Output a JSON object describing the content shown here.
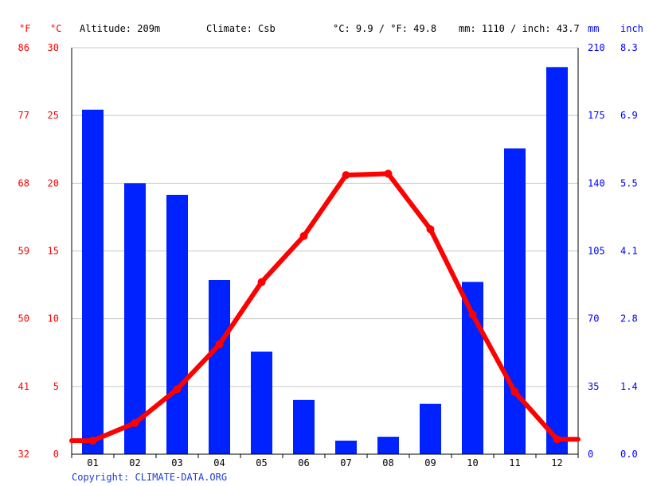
{
  "header": {
    "unit_f": "°F",
    "unit_c": "°C",
    "altitude": "Altitude: 209m",
    "climate": "Climate: Csb",
    "temp_avg": "°C: 9.9 / °F: 49.8",
    "precip_total": "mm: 1110 / inch: 43.7",
    "unit_mm": "mm",
    "unit_inch": "inch"
  },
  "footer": {
    "copyright": "Copyright: CLIMATE-DATA.ORG"
  },
  "colors": {
    "temperature": "#ff0000",
    "precipitation": "#0022ff",
    "grid": "#c8c8c8"
  },
  "chart_data": {
    "type": "bar",
    "categories": [
      "01",
      "02",
      "03",
      "04",
      "05",
      "06",
      "07",
      "08",
      "09",
      "10",
      "11",
      "12"
    ],
    "series": [
      {
        "type": "bar",
        "unit": "mm",
        "values": [
          178,
          140,
          134,
          90,
          53,
          28,
          7,
          9,
          26,
          89,
          158,
          200
        ]
      },
      {
        "type": "line",
        "unit": "°C",
        "values": [
          1.0,
          2.3,
          4.8,
          8.1,
          12.7,
          16.1,
          20.6,
          20.7,
          16.6,
          10.3,
          4.6,
          1.1
        ]
      }
    ],
    "y_left_c": {
      "range": [
        0,
        30
      ],
      "ticks": [
        "0",
        "5",
        "10",
        "15",
        "20",
        "25",
        "30"
      ]
    },
    "y_left_f": {
      "ticks": [
        "32",
        "41",
        "50",
        "59",
        "68",
        "77",
        "86"
      ]
    },
    "y_right_mm": {
      "range": [
        0,
        210
      ],
      "ticks": [
        "0",
        "35",
        "70",
        "105",
        "140",
        "175",
        "210"
      ]
    },
    "y_right_inch": {
      "ticks": [
        "0.0",
        "1.4",
        "2.8",
        "4.1",
        "5.5",
        "6.9",
        "8.3"
      ]
    },
    "grid": true
  }
}
